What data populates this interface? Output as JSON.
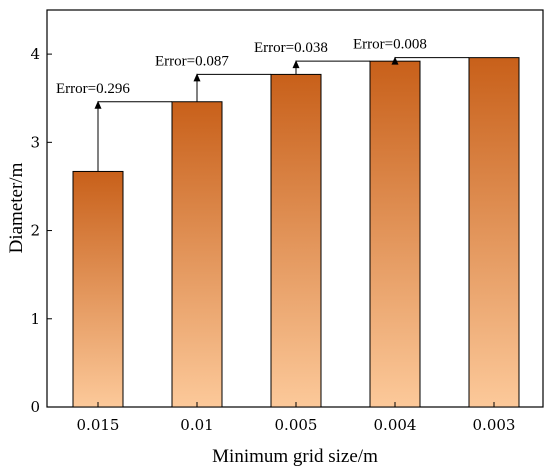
{
  "chart_data": {
    "type": "bar",
    "title": "",
    "xlabel": "Minimum grid size/m",
    "ylabel": "Diameter/m",
    "categories": [
      "0.015",
      "0.01",
      "0.005",
      "0.004",
      "0.003"
    ],
    "values": [
      2.67,
      3.46,
      3.77,
      3.92,
      3.96
    ],
    "ylim": [
      0,
      4.5
    ],
    "yticks": [
      "0",
      "1",
      "2",
      "3",
      "4"
    ],
    "grid": false,
    "legend": "none",
    "bar_gradient": {
      "top": "#c8601a",
      "bottom": "#fcc99a"
    },
    "annotations": [
      {
        "label": "Error=0.296",
        "from": 0,
        "to": 1
      },
      {
        "label": "Error=0.087",
        "from": 1,
        "to": 2
      },
      {
        "label": "Error=0.038",
        "from": 2,
        "to": 3
      },
      {
        "label": "Error=0.008",
        "from": 3,
        "to": 4
      }
    ]
  }
}
